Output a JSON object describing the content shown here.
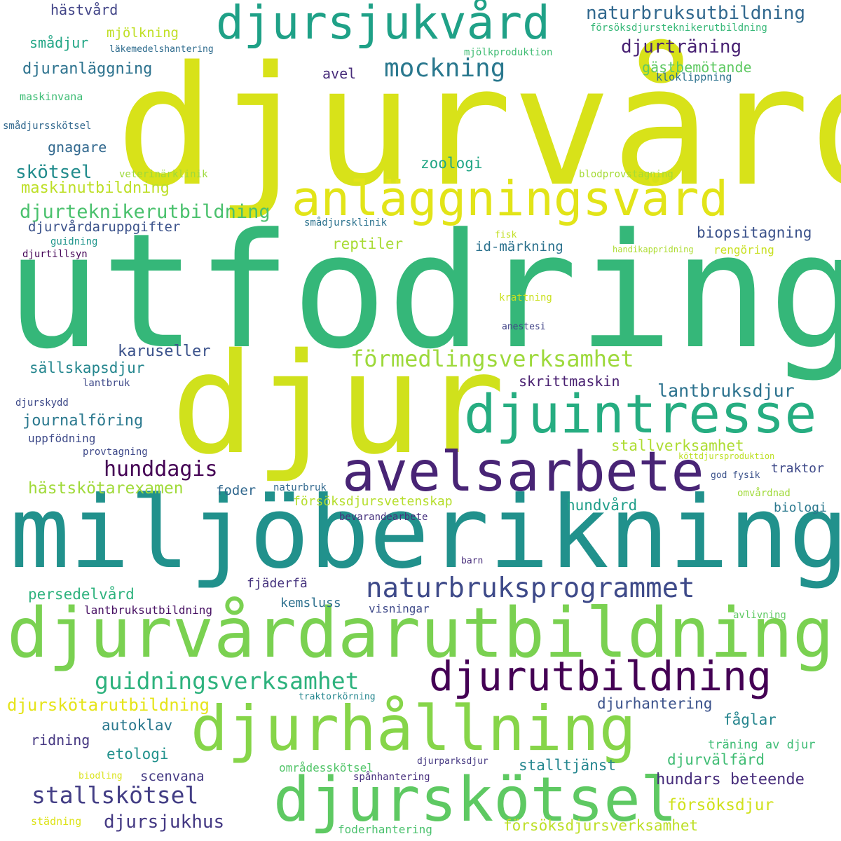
{
  "words": [
    {
      "text": "djurvård",
      "color": "#d8e219"
    },
    {
      "text": "utfodring",
      "color": "#35b779"
    },
    {
      "text": "djur",
      "color": "#d0e11c"
    },
    {
      "text": "miljöberikning",
      "color": "#21918c"
    },
    {
      "text": "djurvårdarutbildning",
      "color": "#7ad151"
    },
    {
      "text": "avelsarbete",
      "color": "#482475"
    },
    {
      "text": "djurhållning",
      "color": "#86d549"
    },
    {
      "text": "djurskötsel",
      "color": "#5ec962"
    },
    {
      "text": "djuintresse",
      "color": "#26ad81"
    },
    {
      "text": "anläggningsvård",
      "color": "#e2e418"
    },
    {
      "text": "djursjukvård",
      "color": "#1fa187"
    },
    {
      "text": "djurutbildning",
      "color": "#440154"
    },
    {
      "text": "naturbruksprogrammet",
      "color": "#3e4a89"
    },
    {
      "text": "guidningsverksamhet",
      "color": "#2db27d"
    },
    {
      "text": "förmedlingsverksamhet",
      "color": "#9dd93b"
    },
    {
      "text": "stallskötsel",
      "color": "#433e85"
    },
    {
      "text": "mockning",
      "color": "#2a788e"
    },
    {
      "text": "djurteknikerutbildning",
      "color": "#4ac16d"
    },
    {
      "text": "hunddagis",
      "color": "#440154"
    },
    {
      "text": "naturbruksutbildning",
      "color": "#31688e"
    },
    {
      "text": "djurträning",
      "color": "#482173"
    },
    {
      "text": "lantbruksdjur",
      "color": "#2c728e"
    },
    {
      "text": "djursjukhus",
      "color": "#443983"
    },
    {
      "text": "försöksdjur",
      "color": "#d0e11c"
    },
    {
      "text": "maskinutbildning",
      "color": "#bddf26"
    },
    {
      "text": "djurskötarutbildning",
      "color": "#e5e419"
    },
    {
      "text": "hundars beteende",
      "color": "#472d7b"
    },
    {
      "text": "skötsel",
      "color": "#228c8d"
    },
    {
      "text": "hästskötarexamen",
      "color": "#a0da39"
    },
    {
      "text": "karuseller",
      "color": "#3b528b"
    },
    {
      "text": "journalföring",
      "color": "#2a788e"
    },
    {
      "text": "djurvårdaruppgifter",
      "color": "#3b528b"
    },
    {
      "text": "biopsitagning",
      "color": "#3b528b"
    },
    {
      "text": "sällskapsdjur",
      "color": "#24868e"
    },
    {
      "text": "persedelvård",
      "color": "#2db27d"
    },
    {
      "text": "djuranläggning",
      "color": "#2c728e"
    },
    {
      "text": "försöksdjursverksamhet",
      "color": "#bddf26"
    },
    {
      "text": "skrittmaskin",
      "color": "#481f70"
    },
    {
      "text": "stallverksamhet",
      "color": "#addc30"
    },
    {
      "text": "gästbemötande",
      "color": "#5ec962"
    },
    {
      "text": "stalltjänst",
      "color": "#24868e"
    },
    {
      "text": "djurvälfärd",
      "color": "#3fbc73"
    },
    {
      "text": "djurhantering",
      "color": "#3b528b"
    },
    {
      "text": "försöksdjursvetenskap",
      "color": "#b5de2b"
    },
    {
      "text": "hundvård",
      "color": "#1f9e89"
    },
    {
      "text": "id-märkning",
      "color": "#2c728e"
    },
    {
      "text": "reptiler",
      "color": "#a8db34"
    },
    {
      "text": "zoologi",
      "color": "#21a685"
    },
    {
      "text": "etologi",
      "color": "#21918c"
    },
    {
      "text": "autoklav",
      "color": "#2a788e"
    },
    {
      "text": "scenvana",
      "color": "#443983"
    },
    {
      "text": "ridning",
      "color": "#453781"
    },
    {
      "text": "fåglar",
      "color": "#25858e"
    },
    {
      "text": "hästvård",
      "color": "#414487"
    },
    {
      "text": "smådjur",
      "color": "#21a685"
    },
    {
      "text": "mjölkning",
      "color": "#c0df25"
    },
    {
      "text": "gnagare",
      "color": "#31688e"
    },
    {
      "text": "avel",
      "color": "#472c7a"
    },
    {
      "text": "foder",
      "color": "#31688e"
    },
    {
      "text": "fjäderfä",
      "color": "#46337e"
    },
    {
      "text": "kemsluss",
      "color": "#2d708e"
    },
    {
      "text": "traktor",
      "color": "#3e4989"
    },
    {
      "text": "biologi",
      "color": "#2a788e"
    },
    {
      "text": "träning av djur",
      "color": "#3dbc74"
    },
    {
      "text": "rengöring",
      "color": "#c8e020"
    },
    {
      "text": "uppfödning",
      "color": "#3e4a89"
    },
    {
      "text": "visningar",
      "color": "#3e4989"
    },
    {
      "text": "lantbruksutbildning",
      "color": "#471063"
    },
    {
      "text": "områdesskötsel",
      "color": "#52c569"
    },
    {
      "text": "foderhantering",
      "color": "#4ac16d"
    },
    {
      "text": "städning",
      "color": "#dde318"
    },
    {
      "text": "spånhantering",
      "color": "#472f7d"
    },
    {
      "text": "djurparksdjur",
      "color": "#453882"
    },
    {
      "text": "bevarandearbete",
      "color": "#46327e"
    },
    {
      "text": "naturbruk",
      "color": "#31688e"
    },
    {
      "text": "kloklippning",
      "color": "#2c728e"
    },
    {
      "text": "mjölkproduktion",
      "color": "#3fbc73"
    },
    {
      "text": "försöksdjursteknikerutbildning",
      "color": "#37b878"
    },
    {
      "text": "läkemedelshantering",
      "color": "#2f6c8e"
    },
    {
      "text": "maskinvana",
      "color": "#3dbc74"
    },
    {
      "text": "smådjursskötsel",
      "color": "#31688e"
    },
    {
      "text": "veterinärklinik",
      "color": "#9dd93b"
    },
    {
      "text": "blodprovstagning",
      "color": "#a5db36"
    },
    {
      "text": "smådjursklinik",
      "color": "#2c728e"
    },
    {
      "text": "guidning",
      "color": "#1f958b"
    },
    {
      "text": "djurtillsyn",
      "color": "#450457"
    },
    {
      "text": "fisk",
      "color": "#c2df23"
    },
    {
      "text": "handikappridning",
      "color": "#addc30"
    },
    {
      "text": "krattning",
      "color": "#cae11f"
    },
    {
      "text": "anestesi",
      "color": "#414487"
    },
    {
      "text": "lantbruk",
      "color": "#3e4989"
    },
    {
      "text": "djurskydd",
      "color": "#3e4a89"
    },
    {
      "text": "provtagning",
      "color": "#3e4989"
    },
    {
      "text": "köttdjursproduktion",
      "color": "#bddf26"
    },
    {
      "text": "god fysik",
      "color": "#3b528b"
    },
    {
      "text": "omvårdnad",
      "color": "#a0da39"
    },
    {
      "text": "avlivning",
      "color": "#5ec962"
    },
    {
      "text": "barn",
      "color": "#472d7b"
    },
    {
      "text": "traktorkörning",
      "color": "#24868e"
    },
    {
      "text": "biodling",
      "color": "#dae319"
    }
  ]
}
